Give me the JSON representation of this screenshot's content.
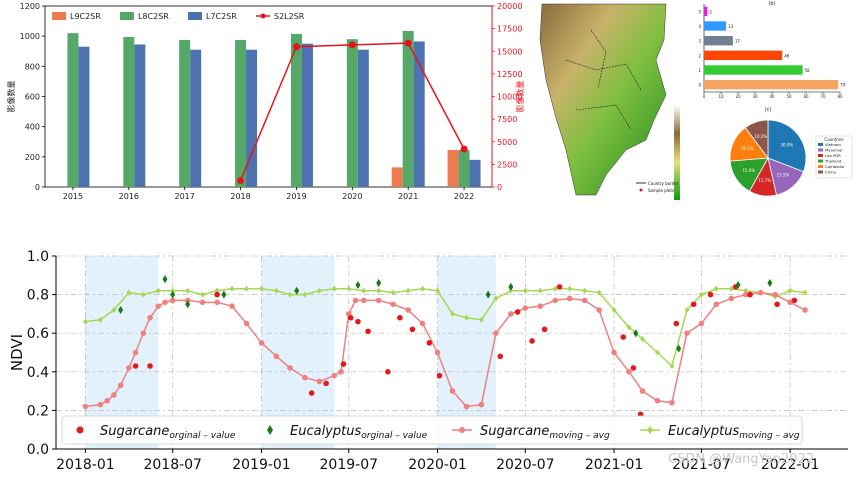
{
  "chart_data": [
    {
      "type": "bar",
      "title": "",
      "xlabel": "",
      "ylabel": "影像数量",
      "y2label": "影像数量",
      "categories": [
        "2015",
        "2016",
        "2017",
        "2018",
        "2019",
        "2020",
        "2021",
        "2022"
      ],
      "ylim": [
        0,
        1200
      ],
      "y2lim": [
        0,
        20000
      ],
      "yticks": [
        "0",
        "200",
        "400",
        "600",
        "800",
        "1000",
        "1200"
      ],
      "y2ticks": [
        "0",
        "2500",
        "5000",
        "7500",
        "10000",
        "12500",
        "15000",
        "17500",
        "20000"
      ],
      "series": [
        {
          "name": "L9C2SR",
          "axis": "left",
          "color": "#ee7b50",
          "values": [
            0,
            0,
            0,
            0,
            0,
            0,
            130,
            245
          ]
        },
        {
          "name": "L8C2SR",
          "axis": "left",
          "color": "#55a868",
          "values": [
            1020,
            995,
            975,
            975,
            1015,
            980,
            1035,
            245
          ]
        },
        {
          "name": "L7C2SR",
          "axis": "left",
          "color": "#4c72b0",
          "values": [
            930,
            945,
            910,
            910,
            950,
            910,
            965,
            180
          ]
        },
        {
          "name": "S2L2SR",
          "axis": "right",
          "type": "line",
          "color": "#e8141c",
          "values": [
            null,
            null,
            null,
            700,
            15500,
            15700,
            15900,
            4200
          ]
        }
      ],
      "grid": false,
      "legend_position": "top"
    },
    {
      "type": "map",
      "legend": [
        "Country border",
        "Sample plots"
      ]
    },
    {
      "type": "bar",
      "orientation": "horizontal",
      "title": "(b)",
      "categories": [
        "5",
        "4",
        "3",
        "2",
        "1",
        "0"
      ],
      "values": [
        2,
        13,
        17,
        46,
        58,
        79
      ],
      "colors": [
        "#e91ee6",
        "#3399ff",
        "#708090",
        "#ff4500",
        "#32cd32",
        "#f4a460"
      ],
      "xticks": [
        "0",
        "10",
        "20",
        "30",
        "40",
        "50",
        "60",
        "70",
        "80"
      ],
      "xlim": [
        0,
        80
      ]
    },
    {
      "type": "pie",
      "title": "(c)",
      "legend_title": "Countries",
      "slices": [
        {
          "label": "Vietnam",
          "pct": "30.9%",
          "value": 30.9,
          "color": "#1f77b4"
        },
        {
          "label": "Myanmar",
          "pct": "15.5%",
          "value": 15.5,
          "color": "#9467bd"
        },
        {
          "label": "Lao PDR",
          "pct": "11.7%",
          "value": 11.7,
          "color": "#d62728"
        },
        {
          "label": "Thailand",
          "pct": "15.6%",
          "value": 15.6,
          "color": "#2ca02c"
        },
        {
          "label": "Cambodia",
          "pct": "16.1%",
          "value": 16.1,
          "color": "#ff7f0e"
        },
        {
          "label": "China",
          "pct": "10.2%",
          "value": 10.2,
          "color": "#8c564b"
        }
      ]
    },
    {
      "type": "scatter",
      "title": "",
      "xlabel": "",
      "ylabel": "NDVI",
      "ylim": [
        0.0,
        1.0
      ],
      "yticks": [
        "0.0",
        "0.2",
        "0.4",
        "0.6",
        "0.8",
        "1.0"
      ],
      "xticks": [
        "2018-01",
        "2018-07",
        "2019-01",
        "2019-07",
        "2020-01",
        "2020-07",
        "2021-01",
        "2021-07",
        "2022-01"
      ],
      "xlim": [
        "2017-11-01",
        "2022-05-01"
      ],
      "shaded_periods": [
        [
          "2018-01-01",
          "2018-06-01"
        ],
        [
          "2019-01-01",
          "2019-06-01"
        ],
        [
          "2020-01-01",
          "2020-05-01"
        ]
      ],
      "grid": true,
      "legend_position": "bottom",
      "legend": [
        {
          "name": "Sugarcane",
          "sub": "orginal – value",
          "marker": "dot",
          "color": "#e31a1c"
        },
        {
          "name": "Eucalyptus",
          "sub": "orginal – value",
          "marker": "diamond",
          "color": "#1a7a1a"
        },
        {
          "name": "Sugarcane",
          "sub": "moving – avg",
          "marker": "line-dot",
          "color": "#f08080"
        },
        {
          "name": "Eucalyptus",
          "sub": "moving – avg",
          "marker": "line-diamond",
          "color": "#a6d854"
        }
      ],
      "series": [
        {
          "name": "Sugarcane moving-avg",
          "color": "#f08080",
          "x": [
            "2018-01-01",
            "2018-02-01",
            "2018-02-15",
            "2018-03-01",
            "2018-03-15",
            "2018-04-01",
            "2018-04-15",
            "2018-05-01",
            "2018-05-15",
            "2018-06-01",
            "2018-06-15",
            "2018-07-01",
            "2018-08-01",
            "2018-09-01",
            "2018-10-01",
            "2018-11-01",
            "2018-12-01",
            "2019-01-01",
            "2019-02-01",
            "2019-03-01",
            "2019-04-01",
            "2019-05-01",
            "2019-06-01",
            "2019-06-15",
            "2019-07-01",
            "2019-07-15",
            "2019-08-01",
            "2019-09-01",
            "2019-10-01",
            "2019-11-01",
            "2019-12-01",
            "2020-01-01",
            "2020-02-01",
            "2020-03-01",
            "2020-04-01",
            "2020-05-01",
            "2020-06-01",
            "2020-07-01",
            "2020-08-01",
            "2020-09-01",
            "2020-10-01",
            "2020-11-01",
            "2020-12-01",
            "2021-01-01",
            "2021-02-01",
            "2021-03-01",
            "2021-04-01",
            "2021-05-01",
            "2021-06-01",
            "2021-07-01",
            "2021-08-01",
            "2021-09-01",
            "2021-10-01",
            "2021-11-01",
            "2021-12-01",
            "2022-01-01",
            "2022-02-01"
          ],
          "y": [
            0.22,
            0.23,
            0.25,
            0.28,
            0.33,
            0.42,
            0.5,
            0.6,
            0.68,
            0.74,
            0.76,
            0.77,
            0.77,
            0.76,
            0.76,
            0.74,
            0.65,
            0.55,
            0.48,
            0.42,
            0.37,
            0.35,
            0.38,
            0.4,
            0.7,
            0.77,
            0.77,
            0.77,
            0.75,
            0.72,
            0.65,
            0.5,
            0.3,
            0.22,
            0.23,
            0.6,
            0.7,
            0.73,
            0.74,
            0.77,
            0.78,
            0.77,
            0.72,
            0.5,
            0.4,
            0.3,
            0.25,
            0.24,
            0.6,
            0.65,
            0.75,
            0.78,
            0.8,
            0.81,
            0.8,
            0.76,
            0.72
          ]
        },
        {
          "name": "Eucalyptus moving-avg",
          "color": "#a6d854",
          "x": [
            "2018-01-01",
            "2018-02-01",
            "2018-03-01",
            "2018-04-01",
            "2018-05-01",
            "2018-06-01",
            "2018-07-01",
            "2018-08-01",
            "2018-09-01",
            "2018-10-01",
            "2018-11-01",
            "2018-12-01",
            "2019-01-01",
            "2019-02-01",
            "2019-03-01",
            "2019-04-01",
            "2019-05-01",
            "2019-06-01",
            "2019-07-01",
            "2019-08-01",
            "2019-09-01",
            "2019-10-01",
            "2019-11-01",
            "2019-12-01",
            "2020-01-01",
            "2020-02-01",
            "2020-03-01",
            "2020-04-01",
            "2020-05-01",
            "2020-06-01",
            "2020-07-01",
            "2020-08-01",
            "2020-09-01",
            "2020-10-01",
            "2020-11-01",
            "2020-12-01",
            "2021-01-01",
            "2021-02-01",
            "2021-03-01",
            "2021-04-01",
            "2021-05-01",
            "2021-06-01",
            "2021-07-01",
            "2021-08-01",
            "2021-09-01",
            "2021-10-01",
            "2021-11-01",
            "2021-12-01",
            "2022-01-01",
            "2022-02-01"
          ],
          "y": [
            0.66,
            0.67,
            0.72,
            0.81,
            0.8,
            0.82,
            0.82,
            0.82,
            0.8,
            0.82,
            0.83,
            0.83,
            0.83,
            0.82,
            0.8,
            0.8,
            0.82,
            0.83,
            0.83,
            0.82,
            0.82,
            0.81,
            0.82,
            0.83,
            0.82,
            0.7,
            0.68,
            0.67,
            0.78,
            0.82,
            0.82,
            0.82,
            0.83,
            0.83,
            0.82,
            0.81,
            0.72,
            0.63,
            0.57,
            0.5,
            0.43,
            0.72,
            0.8,
            0.83,
            0.83,
            0.82,
            0.81,
            0.79,
            0.82,
            0.81
          ]
        },
        {
          "name": "Sugarcane original-value",
          "color": "#e31a1c",
          "x": [
            "2018-04-15",
            "2018-05-15",
            "2018-10-01",
            "2019-04-15",
            "2019-05-15",
            "2019-06-20",
            "2019-07-05",
            "2019-07-20",
            "2019-08-10",
            "2019-09-20",
            "2019-10-15",
            "2019-11-10",
            "2019-12-15",
            "2020-01-05",
            "2020-05-10",
            "2020-06-15",
            "2020-07-15",
            "2020-08-10",
            "2020-09-10",
            "2021-01-20",
            "2021-02-10",
            "2021-02-25",
            "2021-05-10",
            "2021-06-15",
            "2021-07-20",
            "2021-09-10",
            "2021-10-10",
            "2021-12-05",
            "2022-01-10"
          ],
          "y": [
            0.43,
            0.43,
            0.8,
            0.29,
            0.34,
            0.44,
            0.68,
            0.66,
            0.61,
            0.4,
            0.68,
            0.62,
            0.55,
            0.38,
            0.48,
            0.71,
            0.56,
            0.62,
            0.84,
            0.58,
            0.42,
            0.18,
            0.65,
            0.75,
            0.8,
            0.84,
            0.8,
            0.75,
            0.77
          ]
        },
        {
          "name": "Eucalyptus original-value",
          "color": "#1a7a1a",
          "x": [
            "2018-03-15",
            "2018-06-15",
            "2018-07-01",
            "2018-08-01",
            "2018-10-15",
            "2019-03-15",
            "2019-07-20",
            "2019-09-01",
            "2020-04-15",
            "2020-06-01",
            "2021-02-15",
            "2021-05-15",
            "2021-09-15",
            "2021-11-20"
          ],
          "y": [
            0.72,
            0.88,
            0.8,
            0.75,
            0.8,
            0.82,
            0.85,
            0.86,
            0.8,
            0.84,
            0.6,
            0.52,
            0.85,
            0.86
          ]
        }
      ]
    }
  ]
}
